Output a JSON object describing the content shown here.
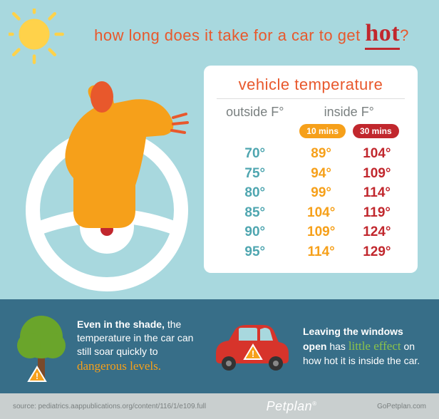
{
  "colors": {
    "sky": "#a8d8de",
    "band": "#376e88",
    "foot_bg": "#c9cfcf",
    "orange": "#e8582c",
    "dark_orange": "#f6a01a",
    "red": "#c1272d",
    "teal": "#4fa6b0",
    "sun": "#ffd24a",
    "dog": "#f6a01a",
    "white": "#ffffff",
    "tree_green": "#6aa52b",
    "tree_trunk": "#7a4a2b",
    "car_red": "#d7342b",
    "grey_text": "#7a8080"
  },
  "title_pre": "how long does it take for a car to get ",
  "title_hot": "hot",
  "title_post": "?",
  "table": {
    "heading": "vehicle temperature",
    "col_outside": "outside F°",
    "col_inside": "inside F°",
    "pill_10": "10 mins",
    "pill_30": "30 mins",
    "pill_10_bg": "#f6a01a",
    "pill_30_bg": "#c1272d",
    "rows": [
      {
        "out": "70°",
        "in1": "89°",
        "in2": "104°"
      },
      {
        "out": "75°",
        "in1": "94°",
        "in2": "109°"
      },
      {
        "out": "80°",
        "in1": "99°",
        "in2": "114°"
      },
      {
        "out": "85°",
        "in1": "104°",
        "in2": "119°"
      },
      {
        "out": "90°",
        "in1": "109°",
        "in2": "124°"
      },
      {
        "out": "95°",
        "in1": "114°",
        "in2": "129°"
      }
    ]
  },
  "band": {
    "shade_b": "Even in the shade,",
    "shade_rest1": " the temperature in the car can still soar quickly to ",
    "shade_hl": "dangerous levels.",
    "windows_pre": "Leaving the windows open",
    "windows_rest1": " has ",
    "windows_hl": "little effect",
    "windows_rest2": " on how hot it is inside the car."
  },
  "footer": {
    "source": "source: pediatrics.aappublications.org/content/116/1/e109.full",
    "brand": "Petplan",
    "brand_mark": "®",
    "url": "GoPetplan.com"
  }
}
